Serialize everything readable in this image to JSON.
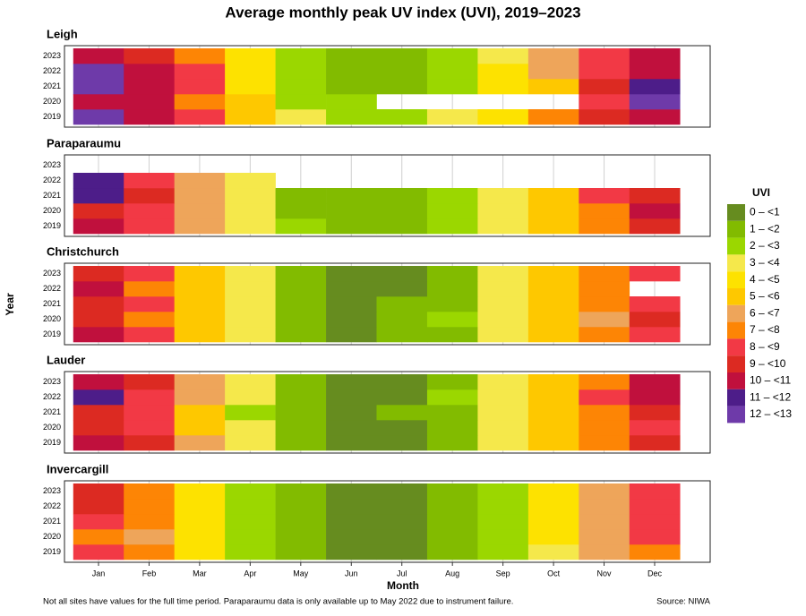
{
  "chart_data": {
    "type": "heatmap",
    "title": "Average monthly peak UV index (UVI), 2019–2023",
    "x_label": "Month",
    "y_label": "Year",
    "categories": [
      "Jan",
      "Feb",
      "Mar",
      "Apr",
      "May",
      "Jun",
      "Jul",
      "Aug",
      "Sep",
      "Oct",
      "Nov",
      "Dec"
    ],
    "years": [
      2019,
      2020,
      2021,
      2022,
      2023
    ],
    "grid": true,
    "legend": {
      "title": "UVI",
      "position": "right",
      "entries": [
        {
          "label": "0 – <1",
          "value": 0,
          "color": "#668c1f"
        },
        {
          "label": "1 – <2",
          "value": 1,
          "color": "#82bb00"
        },
        {
          "label": "2 – <3",
          "value": 2,
          "color": "#9bd700"
        },
        {
          "label": "3 – <4",
          "value": 3,
          "color": "#f5e84b"
        },
        {
          "label": "4 – <5",
          "value": 4,
          "color": "#fde200"
        },
        {
          "label": "5 – <6",
          "value": 5,
          "color": "#fec800"
        },
        {
          "label": "6 – <7",
          "value": 6,
          "color": "#eea55a"
        },
        {
          "label": "7 – <8",
          "value": 7,
          "color": "#fd8505"
        },
        {
          "label": "8 – <9",
          "value": 8,
          "color": "#f23945"
        },
        {
          "label": "9 – <10",
          "value": 9,
          "color": "#dc2a22"
        },
        {
          "label": "10 – <11",
          "value": 10,
          "color": "#c0103d"
        },
        {
          "label": "11 – <12",
          "value": 11,
          "color": "#4d1d89"
        },
        {
          "label": "12 – <13",
          "value": 12,
          "color": "#6e3aa9"
        }
      ]
    },
    "panels": [
      {
        "name": "Leigh",
        "values": [
          [
            12,
            10,
            8,
            5,
            3,
            2,
            2,
            3,
            4,
            7,
            9,
            10
          ],
          [
            10,
            10,
            7,
            5,
            2,
            2,
            null,
            null,
            null,
            null,
            8,
            12
          ],
          [
            12,
            10,
            8,
            4,
            2,
            1,
            1,
            2,
            4,
            5,
            9,
            11
          ],
          [
            12,
            10,
            8,
            4,
            2,
            1,
            1,
            2,
            4,
            6,
            8,
            10
          ],
          [
            10,
            9,
            7,
            4,
            2,
            1,
            1,
            2,
            3,
            6,
            8,
            10
          ]
        ]
      },
      {
        "name": "Paraparaumu",
        "values": [
          [
            10,
            8,
            6,
            3,
            2,
            1,
            1,
            2,
            3,
            5,
            7,
            9
          ],
          [
            9,
            8,
            6,
            3,
            1,
            1,
            1,
            2,
            3,
            5,
            7,
            10
          ],
          [
            11,
            9,
            6,
            3,
            1,
            1,
            1,
            2,
            3,
            5,
            8,
            9
          ],
          [
            11,
            8,
            6,
            3,
            null,
            null,
            null,
            null,
            null,
            null,
            null,
            null
          ],
          [
            null,
            null,
            null,
            null,
            null,
            null,
            null,
            null,
            null,
            null,
            null,
            null
          ]
        ]
      },
      {
        "name": "Christchurch",
        "values": [
          [
            10,
            8,
            5,
            3,
            1,
            0,
            1,
            1,
            3,
            5,
            7,
            8
          ],
          [
            9,
            7,
            5,
            3,
            1,
            0,
            1,
            2,
            3,
            5,
            6,
            9
          ],
          [
            9,
            8,
            5,
            3,
            1,
            0,
            1,
            1,
            3,
            5,
            7,
            8
          ],
          [
            10,
            7,
            5,
            3,
            1,
            0,
            0,
            1,
            3,
            5,
            7,
            null
          ],
          [
            9,
            8,
            5,
            3,
            1,
            0,
            0,
            1,
            3,
            5,
            7,
            8
          ]
        ]
      },
      {
        "name": "Lauder",
        "values": [
          [
            10,
            9,
            6,
            3,
            1,
            0,
            0,
            1,
            3,
            5,
            7,
            9
          ],
          [
            9,
            8,
            5,
            3,
            1,
            0,
            0,
            1,
            3,
            5,
            7,
            8
          ],
          [
            9,
            8,
            5,
            2,
            1,
            0,
            1,
            1,
            3,
            5,
            7,
            9
          ],
          [
            11,
            8,
            6,
            3,
            1,
            0,
            0,
            2,
            3,
            5,
            8,
            10
          ],
          [
            10,
            9,
            6,
            3,
            1,
            0,
            0,
            1,
            3,
            5,
            7,
            10
          ]
        ]
      },
      {
        "name": "Invercargill",
        "values": [
          [
            8,
            7,
            4,
            2,
            1,
            0,
            0,
            1,
            2,
            3,
            6,
            7
          ],
          [
            7,
            6,
            4,
            2,
            1,
            0,
            0,
            1,
            2,
            4,
            6,
            8
          ],
          [
            8,
            7,
            4,
            2,
            1,
            0,
            0,
            1,
            2,
            4,
            6,
            8
          ],
          [
            9,
            7,
            4,
            2,
            1,
            0,
            0,
            1,
            2,
            4,
            6,
            8
          ],
          [
            9,
            7,
            4,
            2,
            1,
            0,
            0,
            1,
            2,
            4,
            6,
            8
          ]
        ]
      }
    ],
    "footnote": "Not all sites have values for the full time period. Paraparaumu data is only available up to May 2022 due to instrument failure.",
    "source": "Source: NIWA"
  }
}
